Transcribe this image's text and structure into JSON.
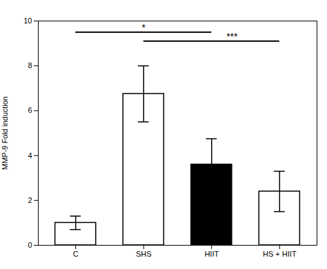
{
  "chart_data": {
    "type": "bar",
    "categories": [
      "C",
      "SHS",
      "HIIT",
      "HS + HIIT"
    ],
    "values": [
      1.0,
      6.75,
      3.6,
      2.4
    ],
    "errors": [
      0.3,
      1.25,
      1.15,
      0.9
    ],
    "colors": [
      "#ffffff",
      "#ffffff",
      "#000000",
      "#ffffff"
    ],
    "ylabel": "MMP-9 Fold induction",
    "ylim": [
      0,
      10
    ],
    "yticks": [
      0,
      2,
      4,
      6,
      8,
      10
    ],
    "grid": false,
    "annotations": [
      {
        "x1": "C",
        "x2": "HIIT",
        "y": 9.5,
        "text": "*"
      },
      {
        "x1": "SHS",
        "x2": "HS + HIIT",
        "y": 9.1,
        "text": "***"
      }
    ]
  }
}
